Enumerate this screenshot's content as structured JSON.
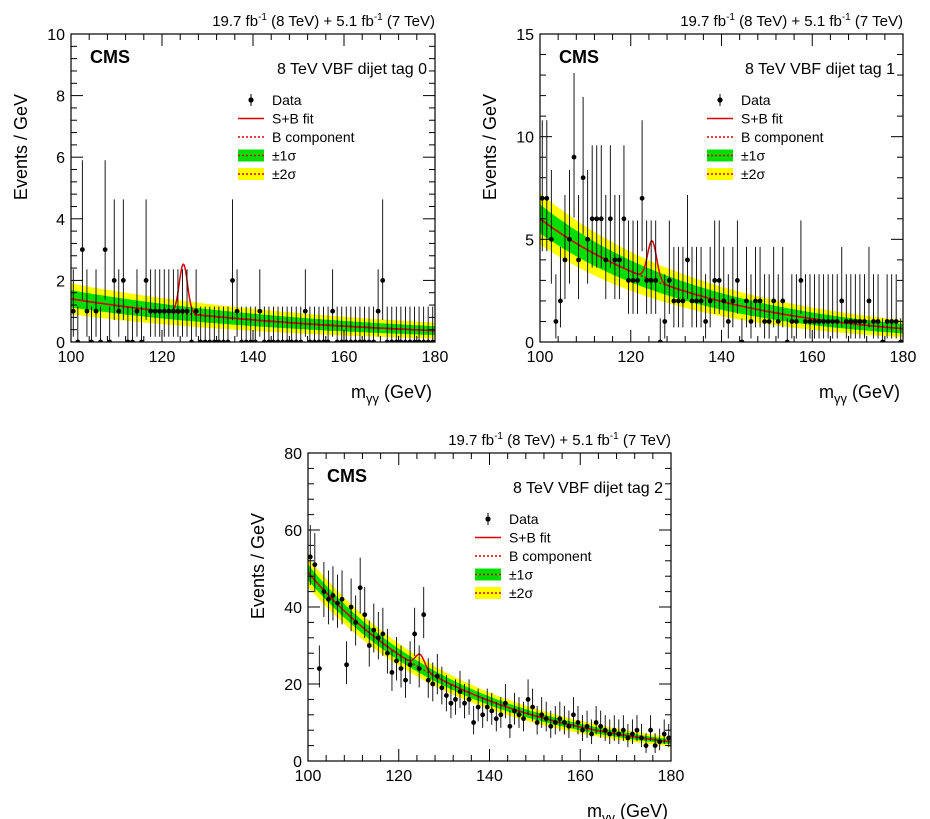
{
  "chart_data": [
    {
      "type": "scatter",
      "panel_id": "tag0",
      "title": "8 TeV VBF dijet tag 0",
      "experiment": "CMS",
      "lumi": {
        "l1": "19.7 fb",
        "e1": "-1",
        "t1": " (8 TeV) + 5.1 fb",
        "e2": "-1",
        "t2": " (7 TeV)"
      },
      "xlabel": {
        "m": "m",
        "sub": "γγ",
        "rest": " (GeV)"
      },
      "ylabel": "Events / GeV",
      "xlim": [
        100,
        180
      ],
      "ylim": [
        0,
        10
      ],
      "xticks": [
        100,
        120,
        140,
        160,
        180
      ],
      "yticks": [
        0,
        2,
        4,
        6,
        8,
        10
      ],
      "legend": [
        "Data",
        "S+B fit",
        "B component",
        "±1σ",
        "±2σ"
      ],
      "background": {
        "b0": 1.4,
        "tau": 60,
        "band1": 0.28,
        "band2": 0.5
      },
      "signal": {
        "mass": 124.7,
        "amp": 1.6,
        "width": 0.9
      },
      "data": {
        "x": [
          100.5,
          101.5,
          102.5,
          103.5,
          104.5,
          105.5,
          106.5,
          107.5,
          108.5,
          109.5,
          110.5,
          111.5,
          112.5,
          113.5,
          114.5,
          115.5,
          116.5,
          117.5,
          118.5,
          119.5,
          120.5,
          121.5,
          122.5,
          123.5,
          124.5,
          125.5,
          126.5,
          127.5,
          128.5,
          129.5,
          130.5,
          131.5,
          132.5,
          133.5,
          134.5,
          135.5,
          136.5,
          137.5,
          138.5,
          139.5,
          140.5,
          141.5,
          142.5,
          143.5,
          144.5,
          145.5,
          146.5,
          147.5,
          148.5,
          149.5,
          150.5,
          151.5,
          152.5,
          153.5,
          154.5,
          155.5,
          156.5,
          157.5,
          158.5,
          159.5,
          160.5,
          161.5,
          162.5,
          163.5,
          164.5,
          165.5,
          166.5,
          167.5,
          168.5,
          169.5,
          170.5,
          171.5,
          172.5,
          173.5,
          174.5,
          175.5,
          176.5,
          177.5,
          178.5,
          179.5
        ],
        "y": [
          1,
          0,
          3,
          1,
          0,
          1,
          0,
          3,
          0,
          2,
          1,
          2,
          0,
          0,
          1,
          0,
          2,
          1,
          1,
          1,
          1,
          1,
          1,
          1,
          1,
          1,
          0,
          1,
          0,
          0,
          0,
          0,
          0,
          0,
          0,
          2,
          1,
          0,
          0,
          0,
          0,
          1,
          0,
          0,
          0,
          0,
          0,
          0,
          0,
          0,
          0,
          1,
          0,
          0,
          0,
          0,
          0,
          1,
          0,
          0,
          0,
          0,
          0,
          0,
          0,
          0,
          0,
          1,
          2,
          0,
          0,
          0,
          0,
          0,
          0,
          0,
          0,
          0,
          0,
          0
        ],
        "err_hi": [
          1.36,
          1.15,
          2.9,
          1.36,
          1.15,
          1.36,
          1.15,
          2.9,
          1.15,
          2.63,
          1.36,
          2.63,
          1.15,
          1.15,
          1.36,
          1.15,
          2.63,
          1.36,
          1.36,
          1.36,
          1.36,
          1.36,
          1.36,
          1.36,
          1.36,
          1.36,
          1.15,
          1.36,
          1.15,
          1.15,
          1.15,
          1.15,
          1.15,
          1.15,
          1.15,
          2.63,
          1.36,
          1.15,
          1.15,
          1.15,
          1.15,
          1.36,
          1.15,
          1.15,
          1.15,
          1.15,
          1.15,
          1.15,
          1.15,
          1.15,
          1.15,
          1.36,
          1.15,
          1.15,
          1.15,
          1.15,
          1.15,
          1.36,
          1.15,
          1.15,
          1.15,
          1.15,
          1.15,
          1.15,
          1.15,
          1.15,
          1.15,
          1.36,
          2.63,
          1.15,
          1.15,
          1.15,
          1.15,
          1.15,
          1.15,
          1.15,
          1.15,
          1.15,
          1.15,
          1.15
        ],
        "err_lo": [
          0.83,
          0,
          1.63,
          0.83,
          0,
          0.83,
          0,
          1.63,
          0,
          1.29,
          0.83,
          1.29,
          0,
          0,
          0.83,
          0,
          1.29,
          0.83,
          0.83,
          0.83,
          0.83,
          0.83,
          0.83,
          0.83,
          0.83,
          0.83,
          0,
          0.83,
          0,
          0,
          0,
          0,
          0,
          0,
          0,
          1.29,
          0.83,
          0,
          0,
          0,
          0,
          0.83,
          0,
          0,
          0,
          0,
          0,
          0,
          0,
          0,
          0,
          0.83,
          0,
          0,
          0,
          0,
          0,
          0.83,
          0,
          0,
          0,
          0,
          0,
          0,
          0,
          0,
          0,
          0.83,
          1.29,
          0,
          0,
          0,
          0,
          0,
          0,
          0,
          0,
          0,
          0,
          0
        ]
      }
    },
    {
      "type": "scatter",
      "panel_id": "tag1",
      "title": "8 TeV VBF dijet tag 1",
      "experiment": "CMS",
      "lumi": {
        "l1": "19.7 fb",
        "e1": "-1",
        "t1": " (8 TeV) + 5.1 fb",
        "e2": "-1",
        "t2": " (7 TeV)"
      },
      "xlabel": {
        "m": "m",
        "sub": "γγ",
        "rest": " (GeV)"
      },
      "ylabel": "Events / GeV",
      "xlim": [
        100,
        180
      ],
      "ylim": [
        0,
        15
      ],
      "xticks": [
        100,
        120,
        140,
        160,
        180
      ],
      "yticks": [
        0,
        5,
        10,
        15
      ],
      "legend": [
        "Data",
        "S+B fit",
        "B component",
        "±1σ",
        "±2σ"
      ],
      "background": {
        "b0": 6.0,
        "tau": 36,
        "band1": 0.7,
        "band2": 1.25
      },
      "signal": {
        "mass": 124.7,
        "amp": 1.9,
        "width": 1.0
      },
      "data": {
        "x": [
          100.5,
          101.5,
          102.5,
          103.5,
          104.5,
          105.5,
          106.5,
          107.5,
          108.5,
          109.5,
          110.5,
          111.5,
          112.5,
          113.5,
          114.5,
          115.5,
          116.5,
          117.5,
          118.5,
          119.5,
          120.5,
          121.5,
          122.5,
          123.5,
          124.5,
          125.5,
          126.5,
          127.5,
          128.5,
          129.5,
          130.5,
          131.5,
          132.5,
          133.5,
          134.5,
          135.5,
          136.5,
          137.5,
          138.5,
          139.5,
          140.5,
          141.5,
          142.5,
          143.5,
          144.5,
          145.5,
          146.5,
          147.5,
          148.5,
          149.5,
          150.5,
          151.5,
          152.5,
          153.5,
          154.5,
          155.5,
          156.5,
          157.5,
          158.5,
          159.5,
          160.5,
          161.5,
          162.5,
          163.5,
          164.5,
          165.5,
          166.5,
          167.5,
          168.5,
          169.5,
          170.5,
          171.5,
          172.5,
          173.5,
          174.5,
          175.5,
          176.5,
          177.5,
          178.5,
          179.5
        ],
        "y": [
          7,
          7,
          5,
          1,
          2,
          4,
          5,
          9,
          4,
          8,
          5,
          6,
          6,
          6,
          4,
          6,
          4,
          4,
          6,
          3,
          3,
          3,
          7,
          3,
          3,
          3,
          0,
          1,
          3,
          2,
          2,
          2,
          4,
          2,
          2,
          2,
          1,
          2,
          3,
          3,
          2,
          1,
          2,
          3,
          0,
          2,
          1,
          2,
          2,
          1,
          1,
          2,
          1,
          2,
          0,
          1,
          1,
          3,
          1,
          1,
          1,
          1,
          1,
          1,
          1,
          1,
          2,
          1,
          1,
          1,
          1,
          1,
          2,
          1,
          1,
          0,
          1,
          1,
          1,
          0
        ],
        "err_hi": [
          3.8,
          3.8,
          3.38,
          2.3,
          2.63,
          3.16,
          3.38,
          4.1,
          3.16,
          3.94,
          3.38,
          3.58,
          3.58,
          3.58,
          3.16,
          3.58,
          3.16,
          3.16,
          3.58,
          2.92,
          2.92,
          2.92,
          3.8,
          2.92,
          2.92,
          2.92,
          1.15,
          2.3,
          2.92,
          2.63,
          2.63,
          2.63,
          3.16,
          2.63,
          2.63,
          2.63,
          2.3,
          2.63,
          2.92,
          2.92,
          2.63,
          2.3,
          2.63,
          2.92,
          1.15,
          2.63,
          2.3,
          2.63,
          2.63,
          2.3,
          2.3,
          2.63,
          2.3,
          2.63,
          1.15,
          2.3,
          2.3,
          2.92,
          2.3,
          2.3,
          2.3,
          2.3,
          2.3,
          2.3,
          2.3,
          2.3,
          2.63,
          2.3,
          2.3,
          2.3,
          2.3,
          2.3,
          2.63,
          2.3,
          2.3,
          1.15,
          2.3,
          2.3,
          2.3,
          1.15
        ],
        "err_lo": [
          2.58,
          2.58,
          2.16,
          0.83,
          1.29,
          1.91,
          2.16,
          2.94,
          1.91,
          2.77,
          2.16,
          2.38,
          2.38,
          2.38,
          1.91,
          2.38,
          1.91,
          1.91,
          2.38,
          1.63,
          1.63,
          1.63,
          2.58,
          1.63,
          1.63,
          1.63,
          0,
          0.83,
          1.63,
          1.29,
          1.29,
          1.29,
          1.91,
          1.29,
          1.29,
          1.29,
          0.83,
          1.29,
          1.63,
          1.63,
          1.29,
          0.83,
          1.29,
          1.63,
          0,
          1.29,
          0.83,
          1.29,
          1.29,
          0.83,
          0.83,
          1.29,
          0.83,
          1.29,
          0,
          0.83,
          0.83,
          1.63,
          0.83,
          0.83,
          0.83,
          0.83,
          0.83,
          0.83,
          0.83,
          0.83,
          1.29,
          0.83,
          0.83,
          0.83,
          0.83,
          0.83,
          1.29,
          0.83,
          0.83,
          0,
          0.83,
          0.83,
          0.83,
          0
        ]
      }
    },
    {
      "type": "scatter",
      "panel_id": "tag2",
      "title": "8 TeV VBF dijet tag 2",
      "experiment": "CMS",
      "lumi": {
        "l1": "19.7 fb",
        "e1": "-1",
        "t1": " (8 TeV) + 5.1 fb",
        "e2": "-1",
        "t2": " (7 TeV)"
      },
      "xlabel": {
        "m": "m",
        "sub": "γγ",
        "rest": " (GeV)"
      },
      "ylabel": "Events / GeV",
      "xlim": [
        100,
        180
      ],
      "ylim": [
        0,
        80
      ],
      "xticks": [
        100,
        120,
        140,
        160,
        180
      ],
      "yticks": [
        0,
        20,
        40,
        60,
        80
      ],
      "legend": [
        "Data",
        "S+B fit",
        "B component",
        "±1σ",
        "±2σ"
      ],
      "background": {
        "b0": 49,
        "tau": 35,
        "band1": 2.0,
        "band2": 3.8
      },
      "signal": {
        "mass": 124.7,
        "amp": 3.5,
        "width": 1.0
      },
      "data": {
        "x": [
          100.5,
          101.5,
          102.5,
          103.5,
          104.5,
          105.5,
          106.5,
          107.5,
          108.5,
          109.5,
          110.5,
          111.5,
          112.5,
          113.5,
          114.5,
          115.5,
          116.5,
          117.5,
          118.5,
          119.5,
          120.5,
          121.5,
          122.5,
          123.5,
          124.5,
          125.5,
          126.5,
          127.5,
          128.5,
          129.5,
          130.5,
          131.5,
          132.5,
          133.5,
          134.5,
          135.5,
          136.5,
          137.5,
          138.5,
          139.5,
          140.5,
          141.5,
          142.5,
          143.5,
          144.5,
          145.5,
          146.5,
          147.5,
          148.5,
          149.5,
          150.5,
          151.5,
          152.5,
          153.5,
          154.5,
          155.5,
          156.5,
          157.5,
          158.5,
          159.5,
          160.5,
          161.5,
          162.5,
          163.5,
          164.5,
          165.5,
          166.5,
          167.5,
          168.5,
          169.5,
          170.5,
          171.5,
          172.5,
          173.5,
          174.5,
          175.5,
          176.5,
          177.5,
          178.5,
          179.5
        ],
        "y": [
          53,
          51,
          24,
          44,
          42,
          43,
          41,
          42,
          25,
          40,
          36,
          45,
          38,
          30,
          34,
          32,
          33,
          28,
          23,
          26,
          24,
          21,
          25,
          33,
          24,
          38,
          21,
          20,
          22,
          19,
          17,
          15,
          16,
          18,
          15,
          16,
          10,
          14,
          12,
          14,
          13,
          11,
          12,
          15,
          9,
          13,
          12,
          11,
          16,
          14,
          10,
          12,
          11,
          9,
          10,
          11,
          10,
          9,
          12,
          10,
          8,
          9,
          7,
          10,
          9,
          8,
          7,
          8,
          7,
          8,
          6,
          7,
          8,
          6,
          4,
          8,
          4,
          5,
          7,
          6
        ],
        "err_hi": [
          8.3,
          8.2,
          6.0,
          7.7,
          7.5,
          7.6,
          7.4,
          7.5,
          6.1,
          7.4,
          7.0,
          7.8,
          7.2,
          6.5,
          6.9,
          6.7,
          6.8,
          6.3,
          5.9,
          6.2,
          6.0,
          5.7,
          6.1,
          6.8,
          6.0,
          7.2,
          5.7,
          5.6,
          5.8,
          5.5,
          5.3,
          5.0,
          5.2,
          5.4,
          5.0,
          5.2,
          4.3,
          4.8,
          4.6,
          4.8,
          4.7,
          4.4,
          4.6,
          5.0,
          4.1,
          4.7,
          4.6,
          4.4,
          5.2,
          4.8,
          4.3,
          4.6,
          4.4,
          4.1,
          4.3,
          4.4,
          4.3,
          4.1,
          4.6,
          4.3,
          3.9,
          4.1,
          3.8,
          4.3,
          4.1,
          3.9,
          3.8,
          3.9,
          3.8,
          3.9,
          3.6,
          3.8,
          3.9,
          3.6,
          3.2,
          3.9,
          3.2,
          3.4,
          3.8,
          3.6
        ],
        "err_lo": [
          7.3,
          7.1,
          4.9,
          6.6,
          6.5,
          6.5,
          6.4,
          6.5,
          5.0,
          6.3,
          6.0,
          6.7,
          6.1,
          5.5,
          5.8,
          5.6,
          5.7,
          5.3,
          4.8,
          5.1,
          4.9,
          4.6,
          5.0,
          5.7,
          4.9,
          6.1,
          4.6,
          4.5,
          4.7,
          4.3,
          4.1,
          3.9,
          4.0,
          4.2,
          3.9,
          4.0,
          3.1,
          3.7,
          3.4,
          3.7,
          3.6,
          3.3,
          3.4,
          3.9,
          3.0,
          3.6,
          3.4,
          3.3,
          4.0,
          3.7,
          3.1,
          3.4,
          3.3,
          3.0,
          3.1,
          3.3,
          3.1,
          3.0,
          3.4,
          3.1,
          2.8,
          3.0,
          2.6,
          3.1,
          3.0,
          2.8,
          2.6,
          2.8,
          2.6,
          2.8,
          2.4,
          2.6,
          2.8,
          2.4,
          1.9,
          2.8,
          1.9,
          2.2,
          2.6,
          2.4
        ]
      }
    }
  ]
}
